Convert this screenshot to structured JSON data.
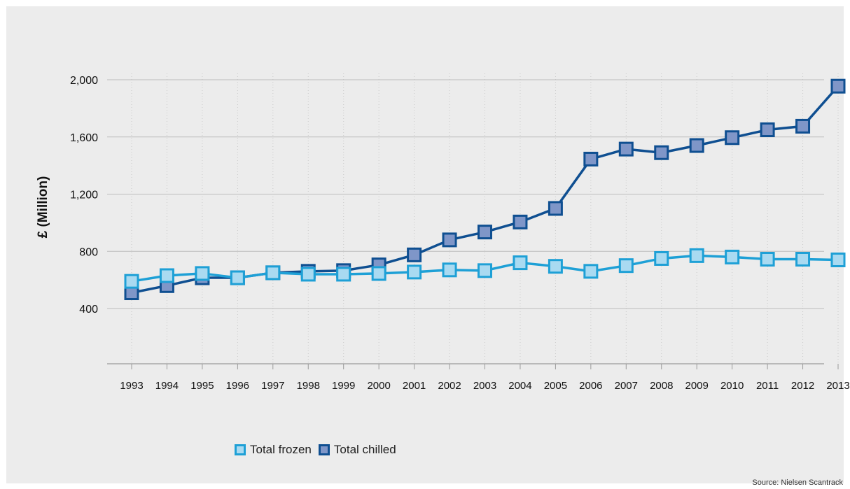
{
  "chart_data": {
    "type": "line",
    "title": "",
    "xlabel": "",
    "ylabel": "£ (Million)",
    "ylim": [
      0,
      2000
    ],
    "yticks": [
      400,
      800,
      1200,
      1600,
      2000
    ],
    "ytick_labels": [
      "400",
      "800",
      "1,200",
      "1,600",
      "2,000"
    ],
    "grid": "horizontal solid, vertical dotted",
    "legend_position": "bottom",
    "x": [
      "1993",
      "1994",
      "1995",
      "1996",
      "1997",
      "1998",
      "1999",
      "2000",
      "2001",
      "2002",
      "2003",
      "2004",
      "2005",
      "2006",
      "2007",
      "2008",
      "2009",
      "2010",
      "2011",
      "2012",
      "2013"
    ],
    "series": [
      {
        "name": "Total frozen",
        "color": "#1ea0d6",
        "fill": "#a9daf1",
        "values": [
          590,
          630,
          645,
          615,
          650,
          640,
          640,
          645,
          655,
          670,
          665,
          720,
          695,
          660,
          700,
          750,
          770,
          760,
          745,
          745,
          740
        ]
      },
      {
        "name": "Total chilled",
        "color": "#0f4f91",
        "fill": "#7f96c8",
        "values": [
          510,
          560,
          615,
          615,
          650,
          660,
          665,
          705,
          775,
          880,
          935,
          1005,
          1100,
          1445,
          1515,
          1490,
          1540,
          1595,
          1650,
          1675,
          1955
        ]
      }
    ],
    "source": "Source: Nielsen Scantrack"
  }
}
